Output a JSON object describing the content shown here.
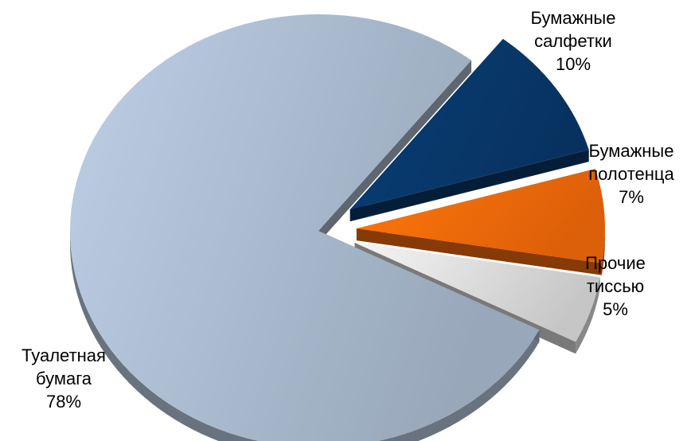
{
  "chart_data": {
    "type": "pie",
    "style": "3d-exploded",
    "title": "",
    "slices": [
      {
        "label_lines": [
          "Бумажные",
          "салфетки"
        ],
        "value": 10,
        "value_label": "10%",
        "color": "#08376a",
        "exploded": true
      },
      {
        "label_lines": [
          "Бумажные",
          "полотенца"
        ],
        "value": 7,
        "value_label": "7%",
        "color": "#f46a0a",
        "exploded": true
      },
      {
        "label_lines": [
          "Прочие",
          "тиссью"
        ],
        "value": 5,
        "value_label": "5%",
        "color": "#dcdcdc",
        "exploded": true
      },
      {
        "label_lines": [
          "Туалетная",
          "бумага"
        ],
        "value": 78,
        "value_label": "78%",
        "color": "#a9b9cd",
        "exploded": false
      }
    ],
    "legend": "none"
  }
}
